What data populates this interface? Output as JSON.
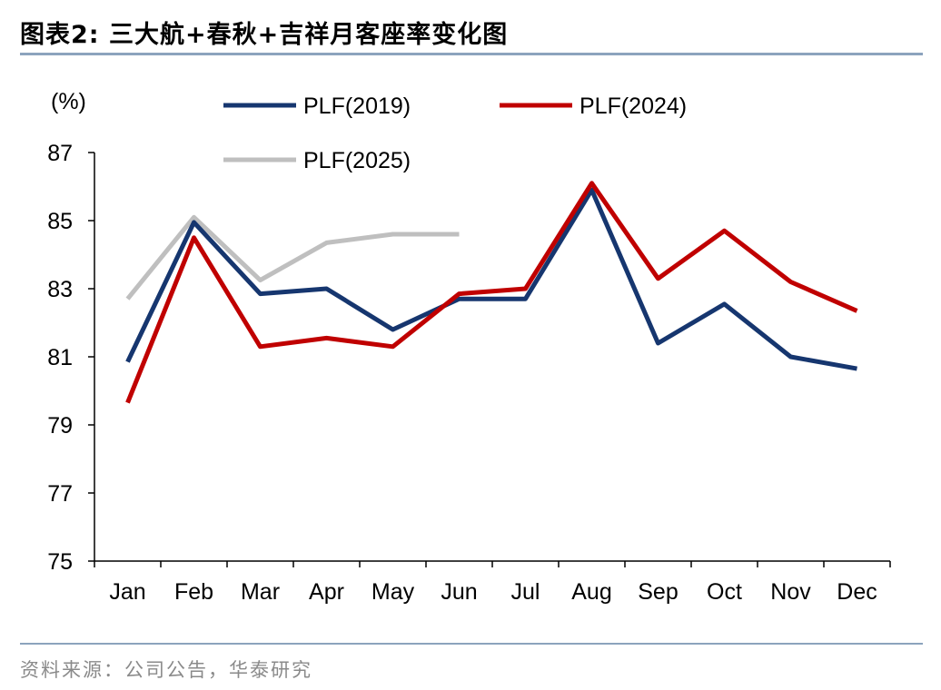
{
  "header": {
    "title": "图表2:  三大航+春秋+吉祥月客座率变化图"
  },
  "footer": {
    "source": "资料来源：公司公告，华泰研究"
  },
  "chart_data": {
    "type": "line",
    "title": "",
    "xlabel": "",
    "ylabel": "(%)",
    "ylim": [
      75,
      87
    ],
    "yticks": [
      75,
      77,
      79,
      81,
      83,
      85,
      87
    ],
    "categories": [
      "Jan",
      "Feb",
      "Mar",
      "Apr",
      "May",
      "Jun",
      "Jul",
      "Aug",
      "Sep",
      "Oct",
      "Nov",
      "Dec"
    ],
    "grid": false,
    "legend_position": "top",
    "series": [
      {
        "name": "PLF(2019)",
        "color": "#16366F",
        "values": [
          80.85,
          84.95,
          82.85,
          83.0,
          81.8,
          82.7,
          82.7,
          85.9,
          81.4,
          82.55,
          81.0,
          80.65
        ]
      },
      {
        "name": "PLF(2024)",
        "color": "#C00000",
        "values": [
          79.65,
          84.5,
          81.3,
          81.55,
          81.3,
          82.85,
          83.0,
          86.1,
          83.3,
          84.7,
          83.2,
          82.35
        ]
      },
      {
        "name": "PLF(2025)",
        "color": "#BFBFBF",
        "values": [
          82.7,
          85.1,
          83.25,
          84.35,
          84.6,
          84.6,
          null,
          null,
          null,
          null,
          null,
          null
        ]
      }
    ]
  }
}
